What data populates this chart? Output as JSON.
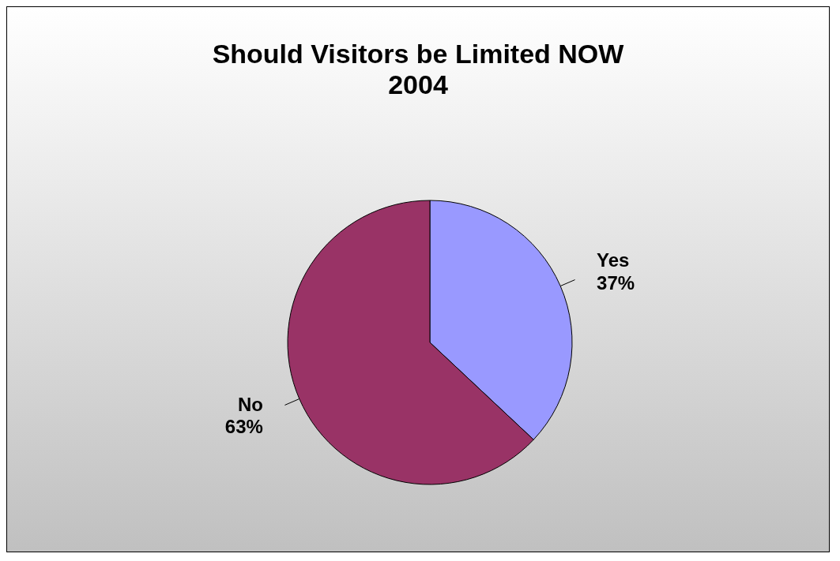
{
  "chart_data": {
    "type": "pie",
    "title": "Should Visitors be Limited NOW\n2004",
    "categories": [
      "Yes",
      "No"
    ],
    "values": [
      37,
      63
    ],
    "colors": [
      "#9999ff",
      "#993366"
    ],
    "value_labels": [
      "37%",
      "63%"
    ],
    "legend": false
  }
}
